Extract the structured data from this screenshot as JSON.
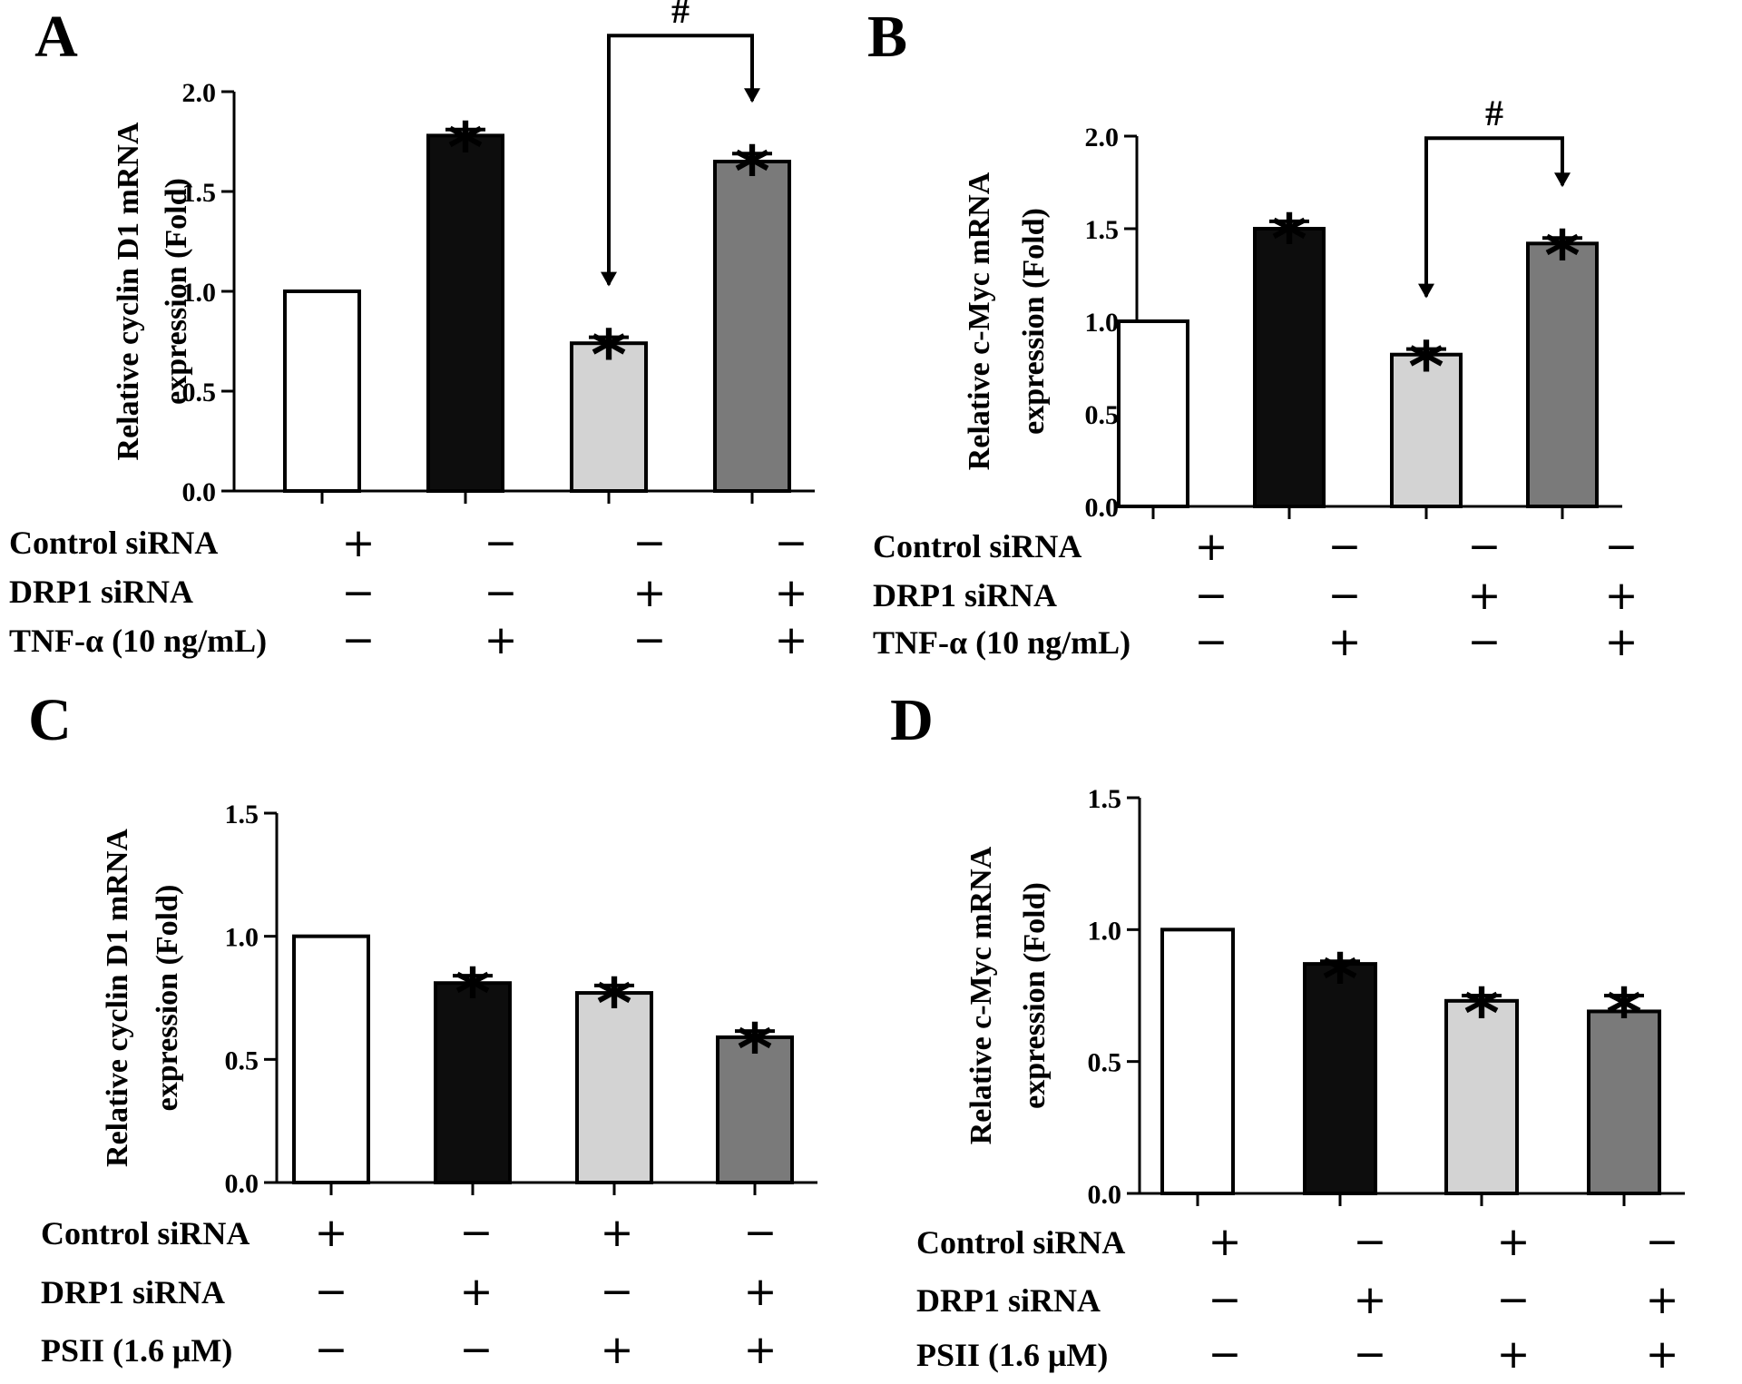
{
  "chart_data": [
    {
      "panel": "A",
      "type": "bar",
      "ylabel_line1": "Relative cyclin D1 mRNA",
      "ylabel_line2": "expression (Fold)",
      "ylim": [
        0,
        2.0
      ],
      "yticks": [
        "0.0",
        "0.5",
        "1.0",
        "1.5",
        "2.0"
      ],
      "values": [
        1.0,
        1.78,
        0.74,
        1.65
      ],
      "errors": [
        0,
        0.03,
        0.03,
        0.04
      ],
      "colors": [
        "#ffffff",
        "#0d0d0d",
        "#d3d3d3",
        "#7a7a7a"
      ],
      "stars": [
        "",
        "*",
        "*",
        "*"
      ],
      "comparison": {
        "from": 2,
        "to": 3,
        "label": "#"
      },
      "conditions": [
        {
          "label": "Control siRNA",
          "signs": [
            "+",
            "−",
            "−",
            "−"
          ]
        },
        {
          "label": "DRP1 siRNA",
          "signs": [
            "−",
            "−",
            "+",
            "+"
          ]
        },
        {
          "label": "TNF-α (10 ng/mL)",
          "signs": [
            "−",
            "+",
            "−",
            "+"
          ]
        }
      ]
    },
    {
      "panel": "B",
      "type": "bar",
      "ylabel_line1": "Relative c-Myc mRNA",
      "ylabel_line2": "expression (Fold)",
      "ylim": [
        0,
        2.0
      ],
      "yticks": [
        "0.0",
        "0.5",
        "1.0",
        "1.5",
        "2.0"
      ],
      "values": [
        1.0,
        1.5,
        0.82,
        1.42
      ],
      "errors": [
        0,
        0.04,
        0.03,
        0.03
      ],
      "colors": [
        "#ffffff",
        "#0d0d0d",
        "#d3d3d3",
        "#7a7a7a"
      ],
      "stars": [
        "",
        "*",
        "*",
        "*"
      ],
      "comparison": {
        "from": 2,
        "to": 3,
        "label": "#"
      },
      "conditions": [
        {
          "label": "Control siRNA",
          "signs": [
            "+",
            "−",
            "−",
            "−"
          ]
        },
        {
          "label": "DRP1 siRNA",
          "signs": [
            "−",
            "−",
            "+",
            "+"
          ]
        },
        {
          "label": "TNF-α (10 ng/mL)",
          "signs": [
            "−",
            "+",
            "−",
            "+"
          ]
        }
      ]
    },
    {
      "panel": "C",
      "type": "bar",
      "ylabel_line1": "Relative cyclin D1 mRNA",
      "ylabel_line2": "expression (Fold)",
      "ylim": [
        0,
        1.5
      ],
      "yticks": [
        "0.0",
        "0.5",
        "1.0",
        "1.5"
      ],
      "values": [
        1.0,
        0.81,
        0.77,
        0.59
      ],
      "errors": [
        0,
        0.03,
        0.03,
        0.025
      ],
      "colors": [
        "#ffffff",
        "#0d0d0d",
        "#d3d3d3",
        "#7a7a7a"
      ],
      "stars": [
        "",
        "*",
        "*",
        "*"
      ],
      "comparison": null,
      "conditions": [
        {
          "label": "Control siRNA",
          "signs": [
            "+",
            "−",
            "+",
            "−"
          ]
        },
        {
          "label": "DRP1 siRNA",
          "signs": [
            "−",
            "+",
            "−",
            "+"
          ]
        },
        {
          "label": "PSII (1.6 μM)",
          "signs": [
            "−",
            "−",
            "+",
            "+"
          ]
        }
      ]
    },
    {
      "panel": "D",
      "type": "bar",
      "ylabel_line1": "Relative c-Myc mRNA",
      "ylabel_line2": "expression (Fold)",
      "ylim": [
        0,
        1.5
      ],
      "yticks": [
        "0.0",
        "0.5",
        "1.0",
        "1.5"
      ],
      "values": [
        1.0,
        0.87,
        0.73,
        0.69
      ],
      "errors": [
        0,
        0.01,
        0.02,
        0.06
      ],
      "colors": [
        "#ffffff",
        "#0d0d0d",
        "#d3d3d3",
        "#7a7a7a"
      ],
      "stars": [
        "",
        "*",
        "*",
        "*"
      ],
      "comparison": null,
      "conditions": [
        {
          "label": "Control siRNA",
          "signs": [
            "+",
            "−",
            "+",
            "−"
          ]
        },
        {
          "label": "DRP1 siRNA",
          "signs": [
            "−",
            "+",
            "−",
            "+"
          ]
        },
        {
          "label": "PSII (1.6 μM)",
          "signs": [
            "−",
            "−",
            "+",
            "+"
          ]
        }
      ]
    }
  ]
}
